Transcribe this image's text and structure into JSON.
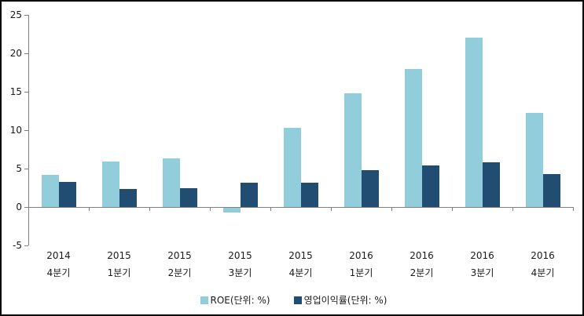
{
  "chart_data": {
    "type": "bar",
    "title": "",
    "categories": [
      {
        "line1": "2014",
        "line2": "4분기"
      },
      {
        "line1": "2015",
        "line2": "1분기"
      },
      {
        "line1": "2015",
        "line2": "2분기"
      },
      {
        "line1": "2015",
        "line2": "3분기"
      },
      {
        "line1": "2015",
        "line2": "4분기"
      },
      {
        "line1": "2016",
        "line2": "1분기"
      },
      {
        "line1": "2016",
        "line2": "2분기"
      },
      {
        "line1": "2016",
        "line2": "3분기"
      },
      {
        "line1": "2016",
        "line2": "4분기"
      }
    ],
    "series": [
      {
        "name": "ROE(단위: %)",
        "color": "#92CDDC",
        "values": [
          4.2,
          5.9,
          6.3,
          -0.6,
          10.3,
          14.8,
          18.0,
          22.0,
          12.2
        ]
      },
      {
        "name": "영업이익률(단위: %)",
        "color": "#214D73",
        "values": [
          3.3,
          2.3,
          2.4,
          3.2,
          3.2,
          4.8,
          5.4,
          5.8,
          4.3
        ]
      }
    ],
    "yticks": [
      25,
      20,
      15,
      10,
      5,
      0,
      -5
    ],
    "ylim": [
      -5,
      25
    ],
    "grid": false,
    "legend_position": "bottom"
  },
  "style_colors": {
    "axis": "#808080",
    "text": "#1a1a1a",
    "background": "#ffffff",
    "border": "#000000"
  }
}
